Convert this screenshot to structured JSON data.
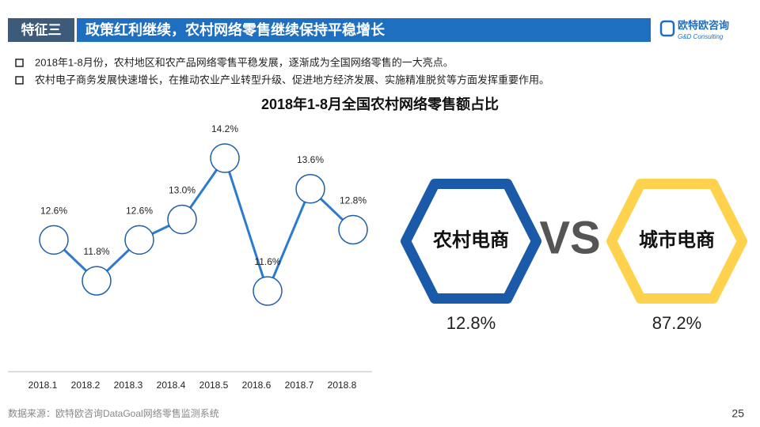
{
  "header": {
    "tag": "特征三",
    "title": "政策红利继续，农村网络零售继续保持平稳增长",
    "logo": "欧特欧咨询",
    "logo_sub": "G&D Consulting"
  },
  "bullets": [
    "2018年1-8月份，农村地区和农产品网络零售平稳发展，逐渐成为全国网络零售的一大亮点。",
    "农村电子商务发展快速增长，在推动农业产业转型升级、促进地方经济发展、实施精准脱贫等方面发挥重要作用。"
  ],
  "chart_data": {
    "type": "line",
    "title": "2018年1-8月全国农村网络零售额占比",
    "categories": [
      "2018.1",
      "2018.2",
      "2018.3",
      "2018.4",
      "2018.5",
      "2018.6",
      "2018.7",
      "2018.8"
    ],
    "values": [
      12.6,
      11.8,
      12.6,
      13.0,
      14.2,
      11.6,
      13.6,
      12.8
    ],
    "value_labels": [
      "12.6%",
      "11.8%",
      "12.6%",
      "13.0%",
      "14.2%",
      "11.6%",
      "13.6%",
      "12.8%"
    ],
    "color": "#2b7bd0"
  },
  "comparison": {
    "vs": "VS",
    "items": [
      {
        "label": "农村电商",
        "share": "12.8%",
        "color": "#1a5aa8"
      },
      {
        "label": "城市电商",
        "share": "87.2%",
        "color": "#ffd24d"
      }
    ]
  },
  "source": "数据来源：欧特欧咨询DataGoal网络零售监测系统",
  "page_number": "25"
}
